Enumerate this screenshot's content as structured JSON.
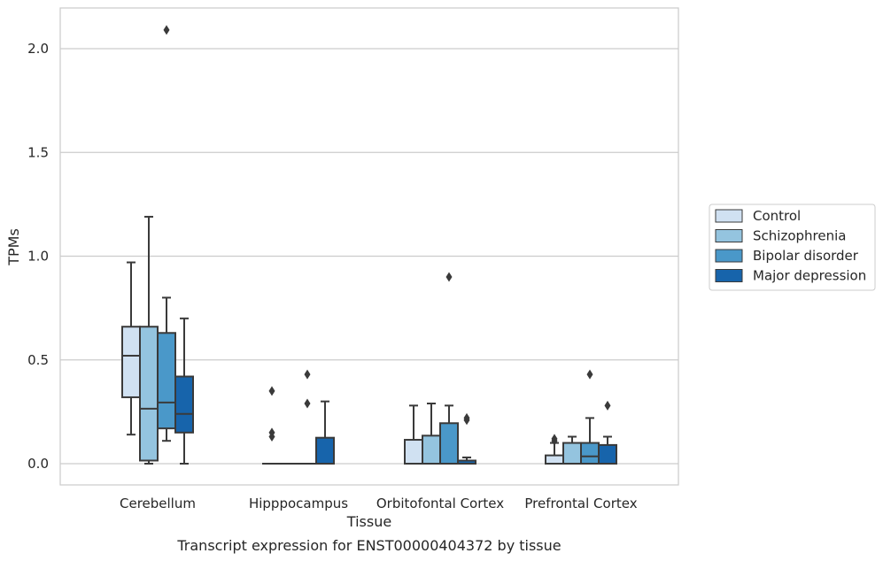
{
  "chart_data": {
    "type": "box",
    "title": "",
    "caption": "Transcript expression for ENST00000404372 by tissue",
    "xlabel": "Tissue",
    "ylabel": "TPMs",
    "ylim": [
      -0.1,
      2.2
    ],
    "yticks": [
      "0.0",
      "0.5",
      "1.0",
      "1.5",
      "2.0"
    ],
    "ytick_values": [
      0,
      0.5,
      1.0,
      1.5,
      2.0
    ],
    "grid": "horizontal",
    "legend_position": "right",
    "categories": [
      "Cerebellum",
      "Hipppocampus",
      "Orbitofontal Cortex",
      "Prefrontal Cortex"
    ],
    "series": [
      {
        "name": "Control",
        "color": "#d0e1f2",
        "boxes": [
          {
            "whislo": 0.14,
            "q1": 0.32,
            "med": 0.52,
            "q3": 0.66,
            "whishi": 0.97,
            "fliers": []
          },
          {
            "whislo": 0.0,
            "q1": 0.0,
            "med": 0.0,
            "q3": 0.0,
            "whishi": 0.0,
            "fliers": [
              0.13,
              0.15,
              0.35
            ]
          },
          {
            "whislo": 0.0,
            "q1": 0.0,
            "med": 0.0,
            "q3": 0.115,
            "whishi": 0.28,
            "fliers": []
          },
          {
            "whislo": 0.0,
            "q1": 0.0,
            "med": 0.0,
            "q3": 0.04,
            "whishi": 0.1,
            "fliers": [
              0.11,
              0.12
            ]
          }
        ]
      },
      {
        "name": "Schizophrenia",
        "color": "#94c4df",
        "boxes": [
          {
            "whislo": 0.0,
            "q1": 0.015,
            "med": 0.265,
            "q3": 0.66,
            "whishi": 1.19,
            "fliers": []
          },
          {
            "whislo": 0.0,
            "q1": 0.0,
            "med": 0.0,
            "q3": 0.0,
            "whishi": 0.0,
            "fliers": []
          },
          {
            "whislo": 0.0,
            "q1": 0.0,
            "med": 0.0,
            "q3": 0.135,
            "whishi": 0.29,
            "fliers": []
          },
          {
            "whislo": 0.0,
            "q1": 0.0,
            "med": 0.0,
            "q3": 0.1,
            "whishi": 0.13,
            "fliers": []
          }
        ]
      },
      {
        "name": "Bipolar disorder",
        "color": "#4a98c9",
        "boxes": [
          {
            "whislo": 0.11,
            "q1": 0.17,
            "med": 0.295,
            "q3": 0.63,
            "whishi": 0.8,
            "fliers": [
              2.09
            ]
          },
          {
            "whislo": 0.0,
            "q1": 0.0,
            "med": 0.0,
            "q3": 0.0,
            "whishi": 0.0,
            "fliers": [
              0.29,
              0.43
            ]
          },
          {
            "whislo": 0.0,
            "q1": 0.0,
            "med": 0.0,
            "q3": 0.195,
            "whishi": 0.28,
            "fliers": [
              0.9
            ]
          },
          {
            "whislo": 0.0,
            "q1": 0.0,
            "med": 0.035,
            "q3": 0.1,
            "whishi": 0.22,
            "fliers": [
              0.43
            ]
          }
        ]
      },
      {
        "name": "Major depression",
        "color": "#1764ab",
        "boxes": [
          {
            "whislo": 0.0,
            "q1": 0.15,
            "med": 0.24,
            "q3": 0.42,
            "whishi": 0.7,
            "fliers": []
          },
          {
            "whislo": 0.0,
            "q1": 0.0,
            "med": 0.0,
            "q3": 0.125,
            "whishi": 0.3,
            "fliers": []
          },
          {
            "whislo": 0.0,
            "q1": 0.0,
            "med": 0.0,
            "q3": 0.015,
            "whishi": 0.03,
            "fliers": [
              0.21,
              0.22
            ]
          },
          {
            "whislo": 0.0,
            "q1": 0.0,
            "med": 0.0,
            "q3": 0.09,
            "whishi": 0.13,
            "fliers": [
              0.28
            ]
          }
        ]
      }
    ]
  }
}
